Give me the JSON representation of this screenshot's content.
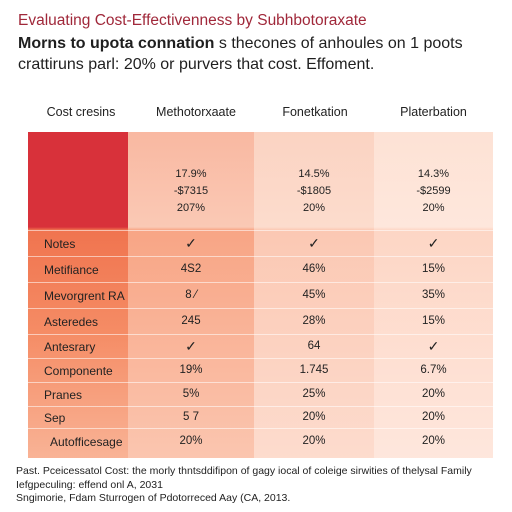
{
  "title": "Evaluating Cost-Effectivenness by Subhbotoraxate",
  "subtitle": {
    "bold_part": "Morns to upota connation",
    "rest_line1": " s thecones of anhoules on 1 poots",
    "line2": "crattiruns parl: 20% or purvers that cost. Effoment."
  },
  "table": {
    "headers": [
      "Cost cresins",
      "Methotorxaate",
      "Fonetkation",
      "Platerbation"
    ],
    "summary": [
      [
        "17.9%",
        "-$7315",
        "207%"
      ],
      [
        "14.5%",
        "-$1805",
        "20%"
      ],
      [
        "14.3%",
        "-$2599",
        "20%"
      ]
    ],
    "rows": [
      {
        "label": "Notes",
        "values": [
          "✓",
          "✓",
          "✓"
        ],
        "check": true
      },
      {
        "label": "Metifiance",
        "values": [
          "4S2",
          "46%",
          "15%"
        ]
      },
      {
        "label": "Mevorgrent RA",
        "values": [
          "8 ⁄",
          "45%",
          "35%"
        ]
      },
      {
        "label": "Asteredes",
        "values": [
          "245",
          "28%",
          "15%"
        ]
      },
      {
        "label": "Antesrary",
        "values": [
          "✓",
          "64",
          "✓"
        ],
        "check_mixed": true
      },
      {
        "label": "Componente",
        "values": [
          "19%",
          "1.745",
          "6.7%"
        ]
      },
      {
        "label": "Pranes",
        "values": [
          "5%",
          "25%",
          "20%"
        ]
      },
      {
        "label": "Sep",
        "values": [
          "5 7",
          "20%",
          "20%"
        ]
      }
    ],
    "footer_row": {
      "label": "Autofficesage",
      "values": [
        "20%",
        "20%",
        "20%"
      ]
    }
  },
  "footer": {
    "line1": "Past. Pceicessatol Cost: the morly thntsddifipon of gagy iocal of coleige sirwities of thelysal Family",
    "line2": "Iefgpeculing: effend onl A, 2031",
    "line3": "Sngimorie, Fdam Sturrogen of Pdotorreced Aay (CA, 2013."
  }
}
